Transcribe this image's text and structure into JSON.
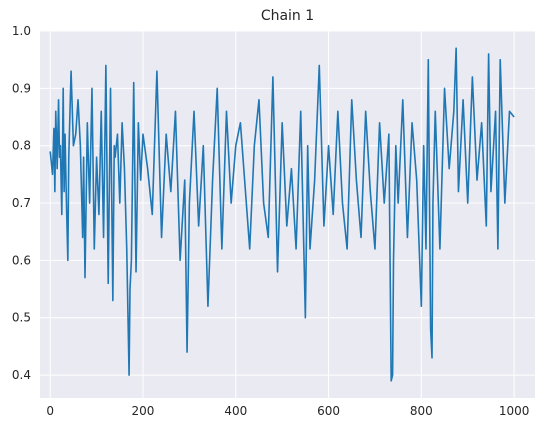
{
  "chart_data": {
    "type": "line",
    "title": "Chain 1",
    "xlabel": "",
    "ylabel": "",
    "xlim": [
      -22,
      1045
    ],
    "ylim": [
      0.36,
      1.0
    ],
    "x_ticks": [
      0,
      200,
      400,
      600,
      800,
      1000
    ],
    "y_ticks": [
      0.4,
      0.5,
      0.6,
      0.7,
      0.8,
      0.9,
      1.0
    ],
    "x_tick_labels": [
      "0",
      "200",
      "400",
      "600",
      "800",
      "1000"
    ],
    "y_tick_labels": [
      "0.4",
      "0.5",
      "0.6",
      "0.7",
      "0.8",
      "0.9",
      "1.0"
    ],
    "grid": true,
    "background": "#eaeaf2",
    "grid_color": "#ffffff",
    "line_color": "#1f77b4",
    "series": [
      {
        "x": [
          0,
          5,
          8,
          10,
          12,
          15,
          18,
          20,
          22,
          25,
          28,
          30,
          32,
          35,
          38,
          40,
          45,
          50,
          55,
          60,
          65,
          70,
          72,
          75,
          80,
          85,
          90,
          95,
          100,
          105,
          110,
          115,
          120,
          125,
          130,
          135,
          138,
          140,
          145,
          150,
          155,
          160,
          165,
          170,
          172,
          175,
          180,
          185,
          190,
          195,
          200,
          210,
          220,
          230,
          240,
          250,
          260,
          270,
          280,
          290,
          295,
          300,
          310,
          320,
          330,
          340,
          350,
          360,
          370,
          380,
          390,
          400,
          410,
          420,
          430,
          440,
          450,
          460,
          470,
          480,
          490,
          500,
          510,
          520,
          530,
          540,
          550,
          555,
          560,
          570,
          580,
          590,
          600,
          610,
          620,
          630,
          640,
          650,
          660,
          670,
          680,
          690,
          700,
          710,
          720,
          730,
          735,
          738,
          740,
          745,
          750,
          760,
          770,
          780,
          790,
          800,
          805,
          810,
          815,
          820,
          823,
          825,
          830,
          840,
          850,
          860,
          870,
          875,
          880,
          890,
          900,
          910,
          920,
          930,
          940,
          945,
          950,
          960,
          965,
          970,
          980,
          990,
          1000
        ],
        "y": [
          0.79,
          0.75,
          0.83,
          0.72,
          0.86,
          0.76,
          0.88,
          0.78,
          0.8,
          0.68,
          0.9,
          0.72,
          0.82,
          0.7,
          0.6,
          0.78,
          0.93,
          0.8,
          0.82,
          0.88,
          0.8,
          0.64,
          0.78,
          0.57,
          0.84,
          0.7,
          0.9,
          0.62,
          0.78,
          0.68,
          0.86,
          0.64,
          0.94,
          0.56,
          0.9,
          0.53,
          0.8,
          0.78,
          0.82,
          0.7,
          0.84,
          0.76,
          0.62,
          0.4,
          0.55,
          0.6,
          0.91,
          0.58,
          0.84,
          0.74,
          0.82,
          0.76,
          0.68,
          0.93,
          0.64,
          0.82,
          0.72,
          0.86,
          0.6,
          0.74,
          0.44,
          0.7,
          0.86,
          0.66,
          0.8,
          0.52,
          0.74,
          0.9,
          0.62,
          0.86,
          0.7,
          0.8,
          0.84,
          0.73,
          0.62,
          0.8,
          0.88,
          0.7,
          0.64,
          0.92,
          0.58,
          0.84,
          0.66,
          0.76,
          0.62,
          0.86,
          0.5,
          0.8,
          0.62,
          0.74,
          0.94,
          0.66,
          0.8,
          0.68,
          0.86,
          0.7,
          0.62,
          0.88,
          0.74,
          0.64,
          0.86,
          0.72,
          0.62,
          0.84,
          0.7,
          0.82,
          0.39,
          0.4,
          0.6,
          0.8,
          0.7,
          0.88,
          0.64,
          0.84,
          0.74,
          0.52,
          0.8,
          0.62,
          0.95,
          0.48,
          0.43,
          0.7,
          0.86,
          0.62,
          0.9,
          0.76,
          0.86,
          0.97,
          0.72,
          0.88,
          0.7,
          0.92,
          0.74,
          0.84,
          0.66,
          0.96,
          0.72,
          0.86,
          0.62,
          0.95,
          0.7,
          0.86,
          0.85
        ]
      }
    ]
  }
}
